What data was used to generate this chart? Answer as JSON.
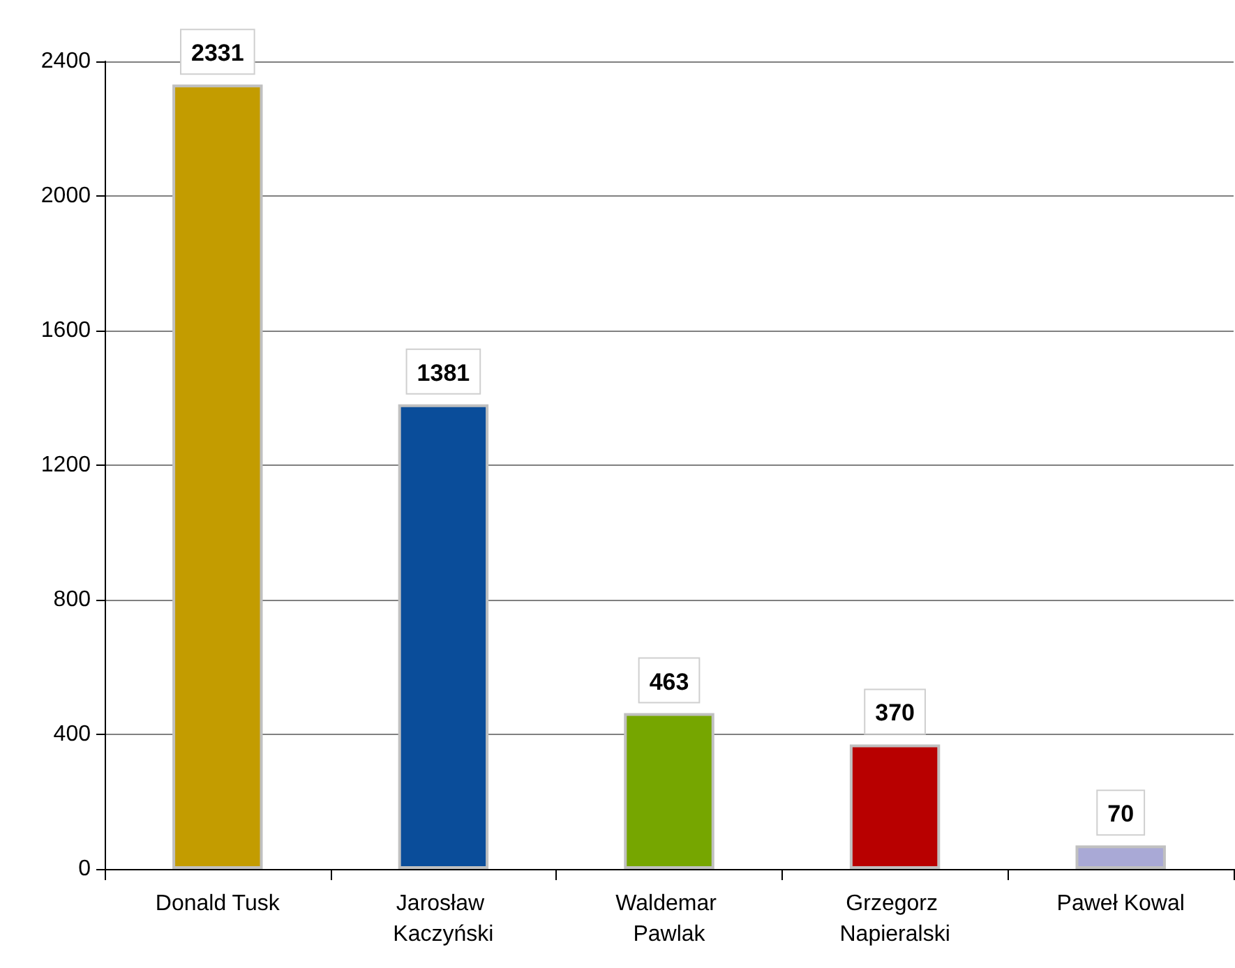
{
  "chart_data": {
    "type": "bar",
    "categories": [
      "Donald Tusk",
      "Jarosław Kaczyński",
      "Waldemar Pawlak",
      "Grzegorz Napieralski",
      "Paweł Kowal"
    ],
    "values": [
      2331,
      1381,
      463,
      370,
      70
    ],
    "colors": [
      "#c39c00",
      "#0a4d9a",
      "#76a600",
      "#b80000",
      "#a9a9d6"
    ],
    "ylim": [
      0,
      2400
    ],
    "yticks": [
      0,
      400,
      800,
      1200,
      1600,
      2000,
      2400
    ],
    "grid": "y",
    "data_labels": true
  }
}
